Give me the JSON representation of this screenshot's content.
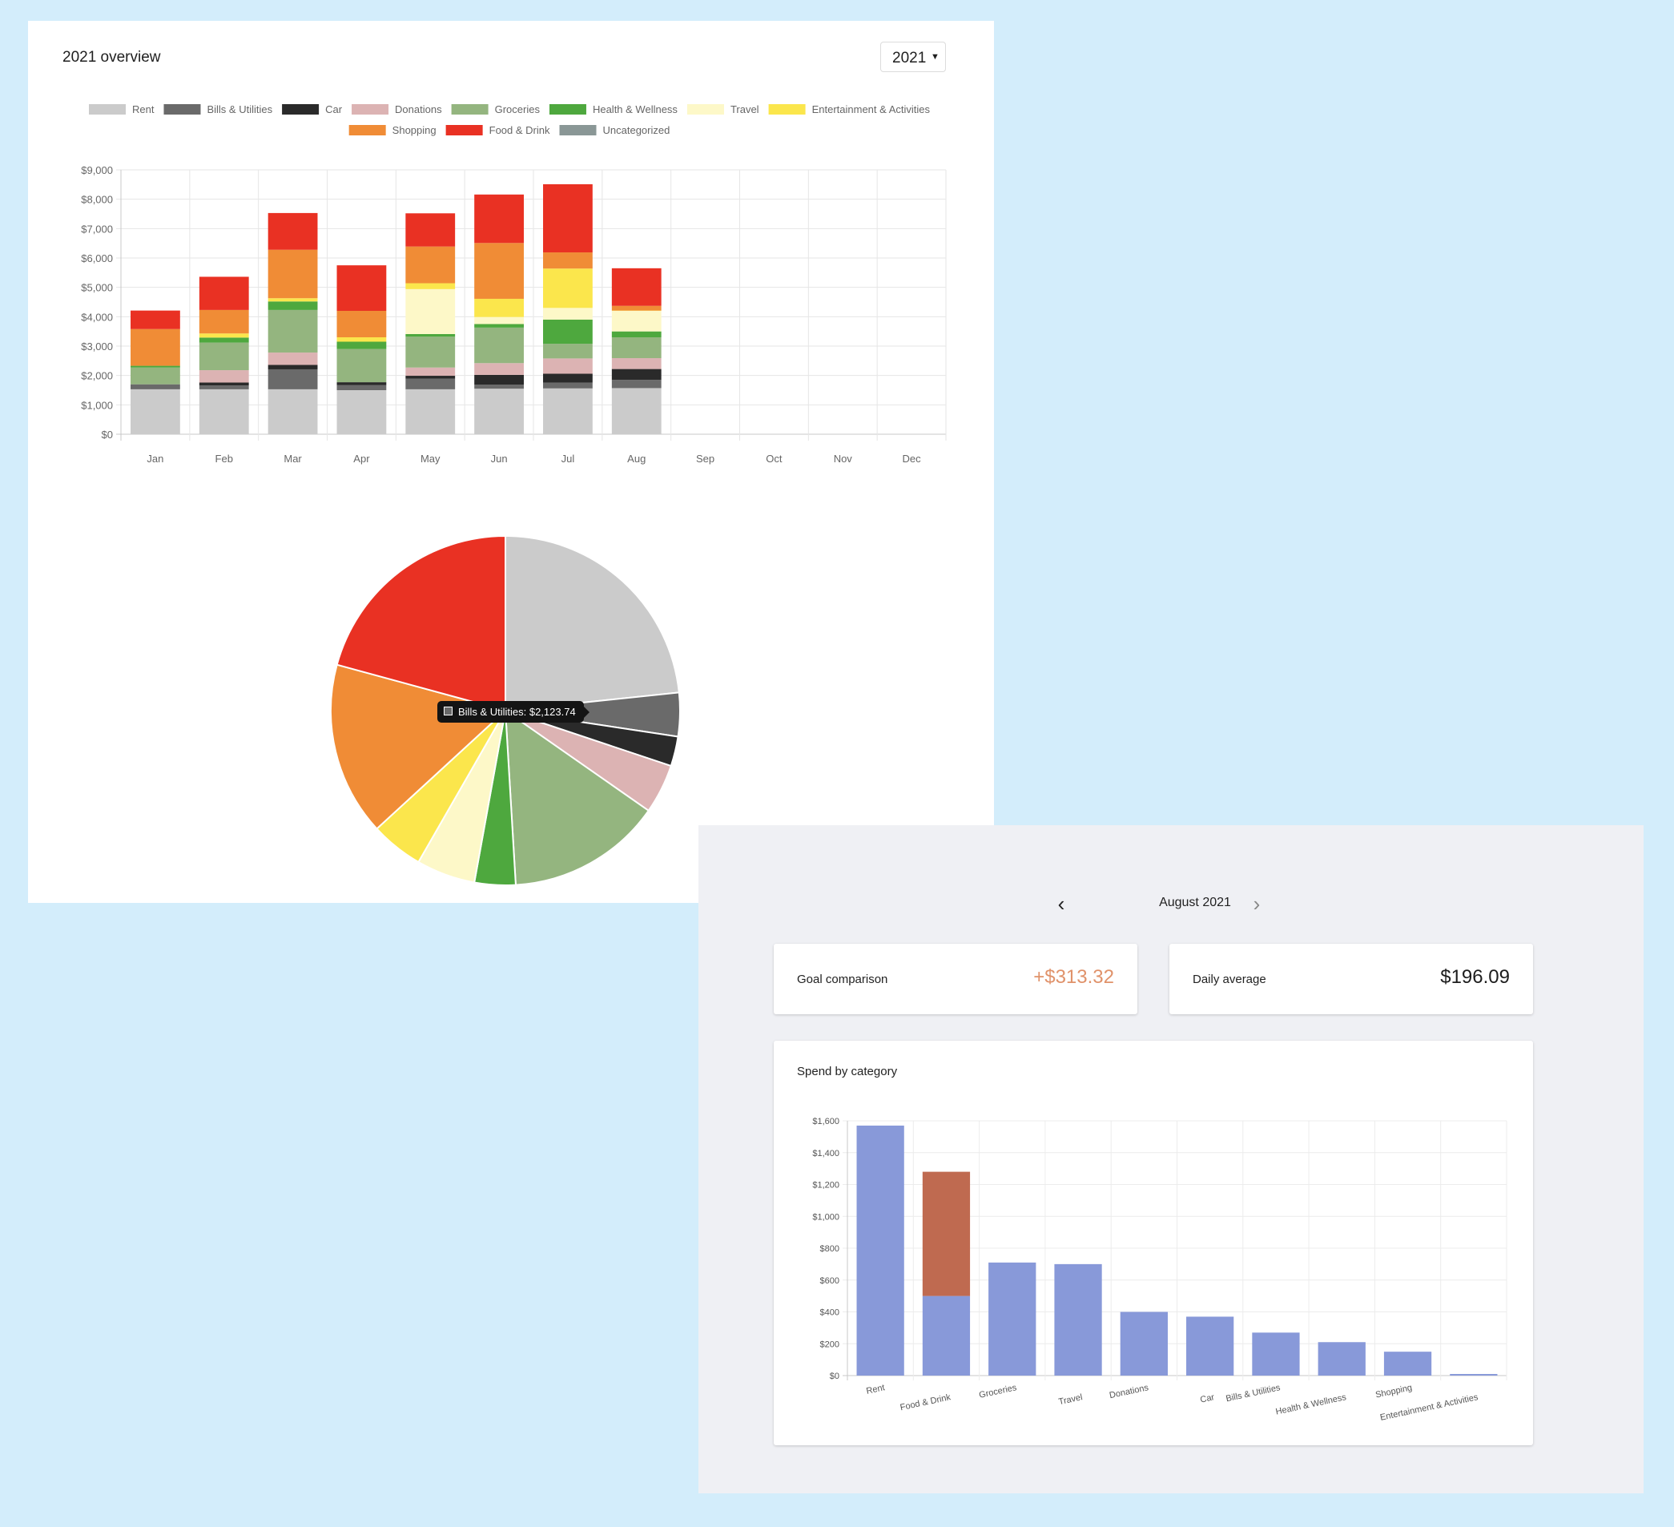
{
  "overview": {
    "title": "2021 overview",
    "year_selected": "2021",
    "year_chevron_icon": "chevron-down-icon"
  },
  "tooltip": {
    "text": "Bills & Utilities: $2,123.74",
    "swatch_color": "#6a6a6a"
  },
  "monthly": {
    "month_label": "August 2021",
    "prev_icon": "chevron-left-icon",
    "next_icon": "chevron-right-icon",
    "goal_label": "Goal comparison",
    "goal_value": "+$313.32",
    "goal_value_color": "#e0926a",
    "daily_label": "Daily average",
    "daily_value": "$196.09",
    "category_title": "Spend by category"
  },
  "chart_data": [
    {
      "type": "bar",
      "stacked": true,
      "legend_position": "top",
      "grid": true,
      "categories": [
        "Jan",
        "Feb",
        "Mar",
        "Apr",
        "May",
        "Jun",
        "Jul",
        "Aug",
        "Sep",
        "Oct",
        "Nov",
        "Dec"
      ],
      "y_ticks": [
        "$0",
        "$1,000",
        "$2,000",
        "$3,000",
        "$4,000",
        "$5,000",
        "$6,000",
        "$7,000",
        "$8,000",
        "$9,000"
      ],
      "ylim": [
        0,
        9000
      ],
      "series": [
        {
          "name": "Rent",
          "color": "#cbcbcb",
          "values": [
            1530,
            1530,
            1530,
            1500,
            1530,
            1550,
            1560,
            1570,
            0,
            0,
            0,
            0
          ]
        },
        {
          "name": "Bills & Utilities",
          "color": "#6a6a6a",
          "values": [
            170,
            130,
            680,
            170,
            360,
            140,
            200,
            280,
            0,
            0,
            0,
            0
          ]
        },
        {
          "name": "Car",
          "color": "#2a2a2a",
          "values": [
            0,
            100,
            150,
            100,
            100,
            330,
            300,
            370,
            0,
            0,
            0,
            0
          ]
        },
        {
          "name": "Donations",
          "color": "#dcb3b3",
          "values": [
            0,
            420,
            420,
            0,
            280,
            400,
            520,
            370,
            0,
            0,
            0,
            0
          ]
        },
        {
          "name": "Groceries",
          "color": "#94b57f",
          "values": [
            570,
            940,
            1450,
            1130,
            1050,
            1210,
            500,
            710,
            0,
            0,
            0,
            0
          ]
        },
        {
          "name": "Health & Wellness",
          "color": "#4ea83e",
          "values": [
            60,
            170,
            290,
            250,
            90,
            120,
            820,
            200,
            0,
            0,
            0,
            0
          ]
        },
        {
          "name": "Travel",
          "color": "#fdf8c8",
          "values": [
            0,
            0,
            0,
            0,
            1530,
            240,
            400,
            700,
            0,
            0,
            0,
            0
          ]
        },
        {
          "name": "Entertainment & Activities",
          "color": "#fbe64c",
          "values": [
            0,
            140,
            110,
            150,
            200,
            620,
            1340,
            10,
            0,
            0,
            0,
            0
          ]
        },
        {
          "name": "Shopping",
          "color": "#f08c36",
          "values": [
            1250,
            800,
            1650,
            900,
            1250,
            1900,
            550,
            160,
            0,
            0,
            0,
            0
          ]
        },
        {
          "name": "Food & Drink",
          "color": "#e93123",
          "values": [
            630,
            1130,
            1250,
            1550,
            1130,
            1650,
            2320,
            1280,
            0,
            0,
            0,
            0
          ]
        },
        {
          "name": "Uncategorized",
          "color": "#8a9796",
          "values": [
            0,
            0,
            0,
            0,
            0,
            0,
            0,
            0,
            0,
            0,
            0,
            0
          ]
        }
      ]
    },
    {
      "type": "pie",
      "slices": [
        {
          "name": "Rent",
          "color": "#cbcbcb",
          "value": 12300
        },
        {
          "name": "Bills & Utilities",
          "color": "#6a6a6a",
          "value": 2123.74
        },
        {
          "name": "Car",
          "color": "#2a2a2a",
          "value": 1450
        },
        {
          "name": "Donations",
          "color": "#dcb3b3",
          "value": 2410
        },
        {
          "name": "Groceries",
          "color": "#94b57f",
          "value": 7560
        },
        {
          "name": "Health & Wellness",
          "color": "#4ea83e",
          "value": 2000
        },
        {
          "name": "Travel",
          "color": "#fdf8c8",
          "value": 2870
        },
        {
          "name": "Entertainment & Activities",
          "color": "#fbe64c",
          "value": 2570
        },
        {
          "name": "Shopping",
          "color": "#f08c36",
          "value": 8460
        },
        {
          "name": "Food & Drink",
          "color": "#e93123",
          "value": 10940
        }
      ]
    },
    {
      "type": "bar",
      "title": "Spend by category",
      "grid": true,
      "categories": [
        "Rent",
        "Food & Drink",
        "Groceries",
        "Travel",
        "Donations",
        "Car",
        "Bills & Utilities",
        "Health & Wellness",
        "Shopping",
        "Entertainment & Activities"
      ],
      "y_ticks": [
        "$0",
        "$200",
        "$400",
        "$600",
        "$800",
        "$1,000",
        "$1,200",
        "$1,400",
        "$1,600"
      ],
      "ylim": [
        0,
        1600
      ],
      "series": [
        {
          "color": "#8899d9",
          "values": [
            1570,
            500,
            710,
            700,
            400,
            370,
            270,
            210,
            150,
            10
          ]
        },
        {
          "color": "#bf6a50",
          "values": [
            0,
            780,
            0,
            0,
            0,
            0,
            0,
            0,
            0,
            0
          ]
        }
      ]
    }
  ]
}
